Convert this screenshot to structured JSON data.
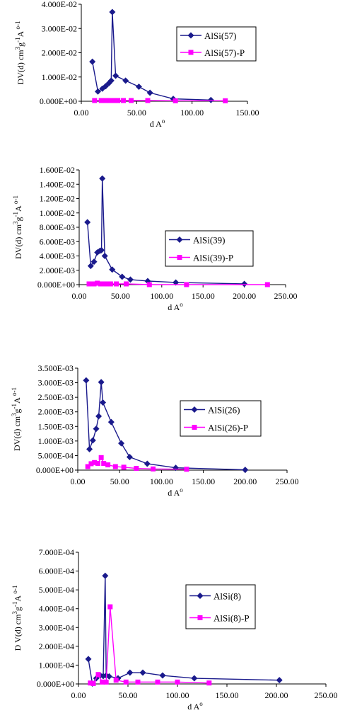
{
  "chart_data": [
    {
      "type": "line",
      "ylabel": "DV(d) cm3g-1A o-1",
      "xlabel": "d Ao",
      "xlim": [
        0,
        150
      ],
      "ylim": [
        0,
        0.04
      ],
      "x_ticks": [
        "0.00",
        "50.00",
        "100.00",
        "150.00"
      ],
      "y_ticks": [
        "0.000E+00",
        "1.000E-02",
        "2.000E-02",
        "3.000E-02",
        "4.000E-02"
      ],
      "legend_position": "right",
      "series": [
        {
          "name": "AlSi(57)",
          "color": "#1a1a8c",
          "marker": "diamond",
          "x": [
            10,
            15,
            19,
            22,
            25,
            27,
            28,
            31,
            40,
            52,
            62,
            83,
            117
          ],
          "y": [
            0.0163,
            0.004,
            0.0052,
            0.0062,
            0.0075,
            0.0085,
            0.0368,
            0.0105,
            0.0085,
            0.006,
            0.0035,
            0.001,
            0.0005
          ]
        },
        {
          "name": "AlSi(57)-P",
          "color": "#ff00ff",
          "marker": "square",
          "x": [
            12,
            18,
            22,
            26,
            30,
            33,
            38,
            45,
            60,
            85,
            130
          ],
          "y": [
            0.0003,
            0.0003,
            0.0003,
            0.0003,
            0.0003,
            0.0003,
            0.0003,
            0.0003,
            0.0003,
            0.0002,
            0.0002
          ]
        }
      ]
    },
    {
      "type": "line",
      "ylabel": "DV(d) cm3g-1A o-1",
      "xlabel": "d Ao",
      "xlim": [
        0,
        250
      ],
      "ylim": [
        0,
        0.016
      ],
      "x_ticks": [
        "0.00",
        "50.00",
        "100.00",
        "150.00",
        "200.00",
        "250.00"
      ],
      "y_ticks": [
        "0.000E+00",
        "2.000E-03",
        "4.000E-03",
        "6.000E-03",
        "8.000E-03",
        "1.000E-02",
        "1.200E-02",
        "1.400E-02",
        "1.600E-02"
      ],
      "legend_position": "right",
      "series": [
        {
          "name": "AlSi(39)",
          "color": "#1a1a8c",
          "marker": "diamond",
          "x": [
            10,
            14,
            18,
            22,
            25,
            27,
            28,
            31,
            40,
            52,
            62,
            83,
            117,
            200
          ],
          "y": [
            0.0087,
            0.0026,
            0.0032,
            0.0045,
            0.0047,
            0.0048,
            0.0148,
            0.004,
            0.0021,
            0.0011,
            0.0007,
            0.0005,
            0.0003,
            0.0001
          ]
        },
        {
          "name": "AlSi(39)-P",
          "color": "#ff00ff",
          "marker": "square",
          "x": [
            12,
            18,
            22,
            26,
            30,
            33,
            38,
            45,
            57,
            85,
            130,
            228
          ],
          "y": [
            0.0001,
            0.0001,
            0.0002,
            0.0001,
            0.0001,
            0.0001,
            0.0001,
            0.0001,
            0.0001,
            0.0,
            0.0,
            0.0
          ]
        }
      ]
    },
    {
      "type": "line",
      "ylabel": "DV(d) cm3g-1A o-1",
      "xlabel": "d Ao",
      "xlim": [
        0,
        250
      ],
      "ylim": [
        0,
        0.0035
      ],
      "x_ticks": [
        "0.00",
        "50.00",
        "100.00",
        "150.00",
        "200.00",
        "250.00"
      ],
      "y_ticks": [
        "0.000E+00",
        "5.000E-04",
        "1.000E-03",
        "1.500E-03",
        "2.000E-03",
        "2.500E-03",
        "3.000E-03",
        "3.500E-03"
      ],
      "legend_position": "right",
      "series": [
        {
          "name": "AlSi(26)",
          "color": "#1a1a8c",
          "marker": "diamond",
          "x": [
            10,
            14,
            18,
            22,
            25,
            28,
            30,
            40,
            52,
            62,
            83,
            117,
            200
          ],
          "y": [
            0.00308,
            0.00072,
            0.00102,
            0.00142,
            0.00185,
            0.00302,
            0.00232,
            0.00165,
            0.00092,
            0.00045,
            0.00022,
            8e-05,
            1e-05
          ]
        },
        {
          "name": "AlSi(26)-P",
          "color": "#ff00ff",
          "marker": "square",
          "x": [
            12,
            16,
            20,
            24,
            28,
            31,
            36,
            45,
            55,
            70,
            90,
            130
          ],
          "y": [
            0.00012,
            0.00022,
            0.00026,
            0.00023,
            0.00043,
            0.00023,
            0.00018,
            0.00012,
            0.0001,
            6e-05,
            4e-05,
            3e-05
          ]
        }
      ]
    },
    {
      "type": "line",
      "ylabel": "D V(d) cm3g-1A o-1",
      "xlabel": "d Ao",
      "xlim": [
        0,
        250
      ],
      "ylim": [
        0,
        0.0007
      ],
      "x_ticks": [
        "0.00",
        "50.00",
        "100.00",
        "150.00",
        "200.00",
        "250.00"
      ],
      "y_ticks": [
        "0.000E+00",
        "1.000E-04",
        "2.000E-04",
        "3.000E-04",
        "4.000E-04",
        "5.000E-04",
        "6.000E-04",
        "7.000E-04"
      ],
      "legend_position": "right",
      "series": [
        {
          "name": "AlSi(8)",
          "color": "#1a1a8c",
          "marker": "diamond",
          "x": [
            10,
            14,
            18,
            22,
            25,
            27,
            28,
            31,
            40,
            52,
            65,
            85,
            117,
            203
          ],
          "y": [
            0.000132,
            2e-06,
            3e-05,
            4.5e-05,
            4.2e-05,
            0.000575,
            4.5e-05,
            4e-05,
            3e-05,
            6e-05,
            6e-05,
            4.5e-05,
            3e-05,
            2e-05
          ]
        },
        {
          "name": "AlSi(8)-P",
          "color": "#ff00ff",
          "marker": "square",
          "x": [
            12,
            15,
            20,
            24,
            28,
            32,
            38,
            48,
            60,
            80,
            100,
            132
          ],
          "y": [
            5e-06,
            2e-06,
            5e-05,
            1e-05,
            1e-05,
            0.00041,
            2e-05,
            1e-05,
            1e-05,
            1e-05,
            1e-05,
            5e-06
          ]
        }
      ]
    }
  ]
}
